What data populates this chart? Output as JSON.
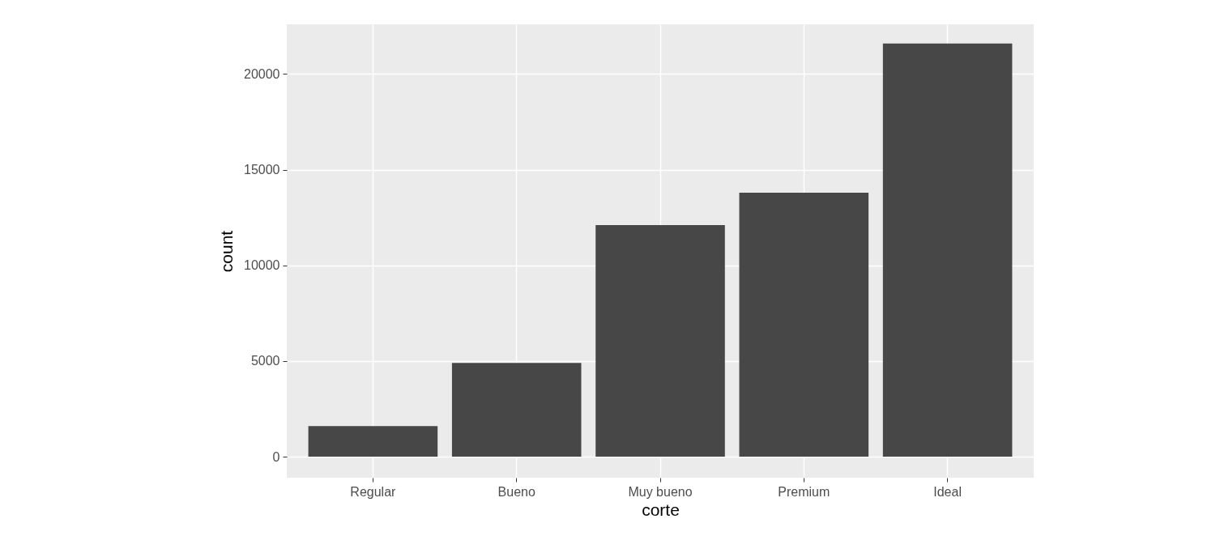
{
  "chart_data": {
    "type": "bar",
    "xlabel": "corte",
    "ylabel": "count",
    "categories": [
      "Regular",
      "Bueno",
      "Muy bueno",
      "Premium",
      "Ideal"
    ],
    "values": [
      1600,
      4900,
      12100,
      13800,
      21600
    ],
    "color": "#474747",
    "ylim": [
      -1100,
      22600
    ],
    "yticks": [
      0,
      5000,
      10000,
      15000,
      20000
    ],
    "grid": true
  }
}
